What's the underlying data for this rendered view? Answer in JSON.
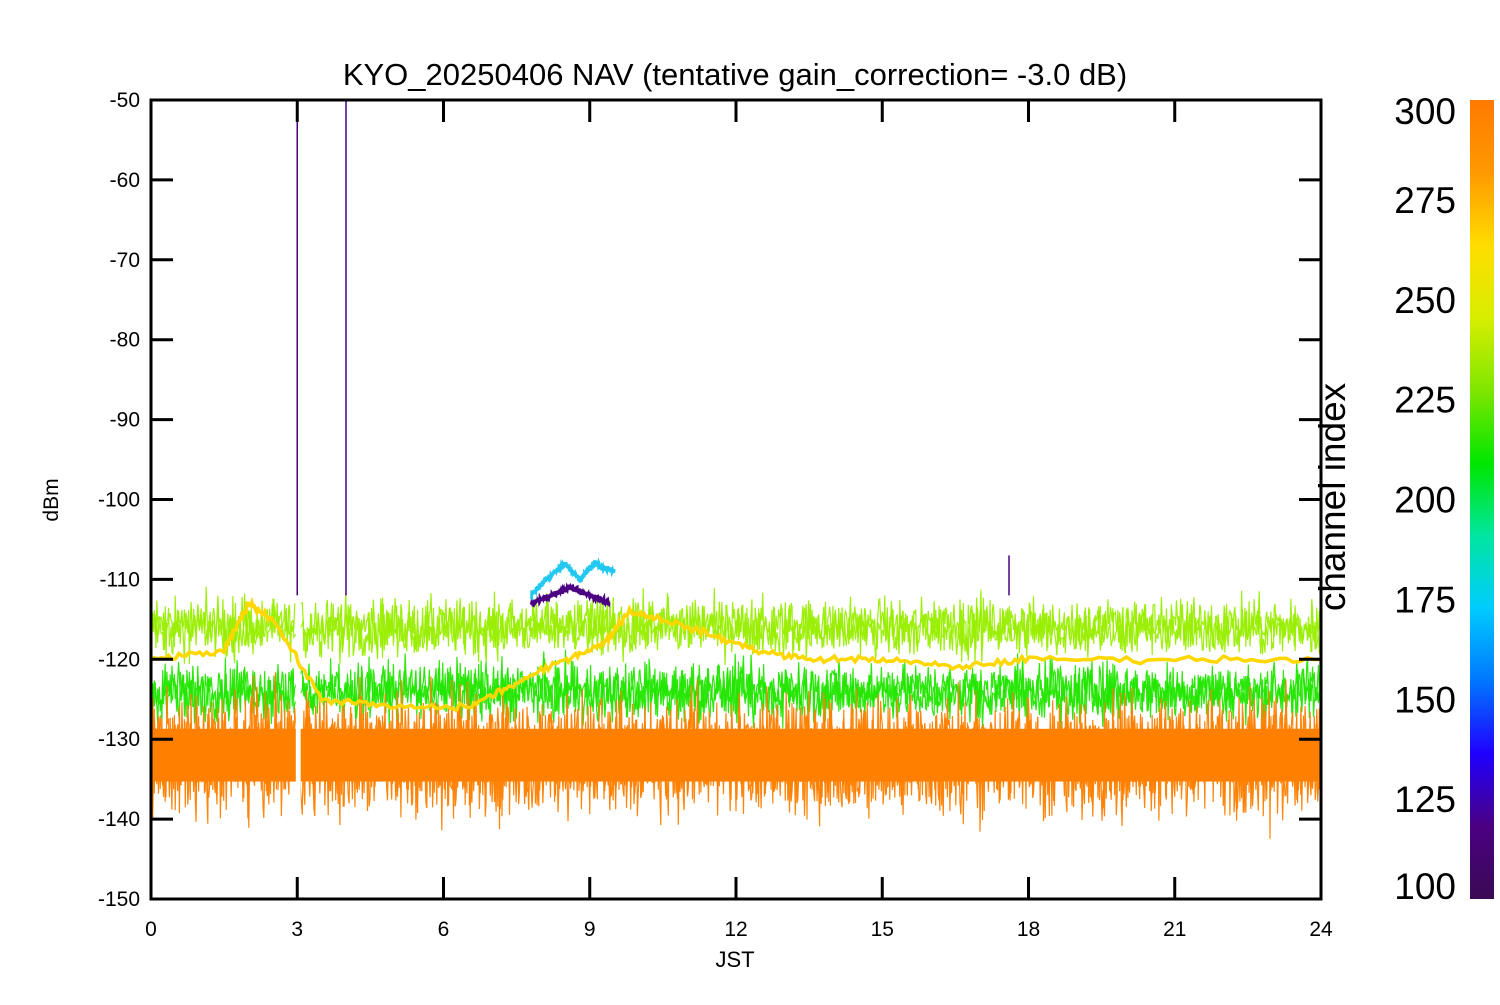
{
  "chart_data": {
    "type": "line",
    "title": "KYO_20250406 NAV (tentative gain_correction= -3.0 dB)",
    "xlabel": "JST",
    "ylabel": "dBm",
    "xlim": [
      0,
      24
    ],
    "ylim": [
      -150,
      -50
    ],
    "x_ticks": [
      0,
      3,
      6,
      9,
      12,
      15,
      18,
      21,
      24
    ],
    "y_ticks": [
      -50,
      -60,
      -70,
      -80,
      -90,
      -100,
      -110,
      -120,
      -130,
      -140,
      -150
    ],
    "grid": false,
    "colorbar": {
      "label": "channel index",
      "range": [
        100,
        300
      ],
      "ticks": [
        100,
        125,
        150,
        175,
        200,
        225,
        250,
        275,
        300
      ],
      "colormap": [
        "#3a0a55",
        "#4b0082",
        "#1f00ff",
        "#0077ff",
        "#00ccff",
        "#00e6a0",
        "#00e600",
        "#7fe600",
        "#d8ee00",
        "#ffdd00",
        "#ff9900",
        "#ff7a00"
      ]
    },
    "series": [
      {
        "channel": 290,
        "color": "#ff8000",
        "band": "noise-floor",
        "center": -132,
        "spread": 6,
        "extreme_min": -147
      },
      {
        "channel": 275,
        "color": "#ffd700",
        "band": "mid",
        "x": [
          0,
          1.5,
          2.0,
          2.5,
          3.5,
          5.0,
          6.5,
          7.5,
          8.5,
          9.3,
          9.8,
          10.5,
          11.5,
          12.5,
          13.5,
          15.0,
          16.5,
          18.0,
          21.0,
          24.0
        ],
        "y": [
          -120,
          -119,
          -113,
          -115,
          -125,
          -126,
          -126,
          -123,
          -120,
          -118,
          -114,
          -115,
          -117,
          -119,
          -120,
          -120,
          -121,
          -120,
          -120,
          -120
        ]
      },
      {
        "channel": 255,
        "color": "#99ee00",
        "band": "upper",
        "center": -116,
        "spread": 3
      },
      {
        "channel": 225,
        "color": "#22e600",
        "band": "lower-mid",
        "center": -124,
        "spread": 3,
        "extreme_max": -117
      },
      {
        "channel": 170,
        "color": "#22c8f0",
        "band": "morning",
        "x": [
          7.8,
          8.1,
          8.5,
          8.8,
          9.1,
          9.5
        ],
        "y": [
          -112,
          -110,
          -108,
          -110,
          -108,
          -109
        ]
      },
      {
        "channel": 115,
        "color": "#4b0082",
        "band": "morning",
        "x": [
          7.8,
          8.2,
          8.6,
          9.0,
          9.4
        ],
        "y": [
          -113,
          -112,
          -111,
          -112,
          -113
        ]
      },
      {
        "channel": 115,
        "color": "#4b0082",
        "band": "spikes",
        "x": [
          3.0,
          4.0,
          17.6
        ],
        "y": [
          -50,
          -50,
          -107
        ]
      }
    ]
  }
}
